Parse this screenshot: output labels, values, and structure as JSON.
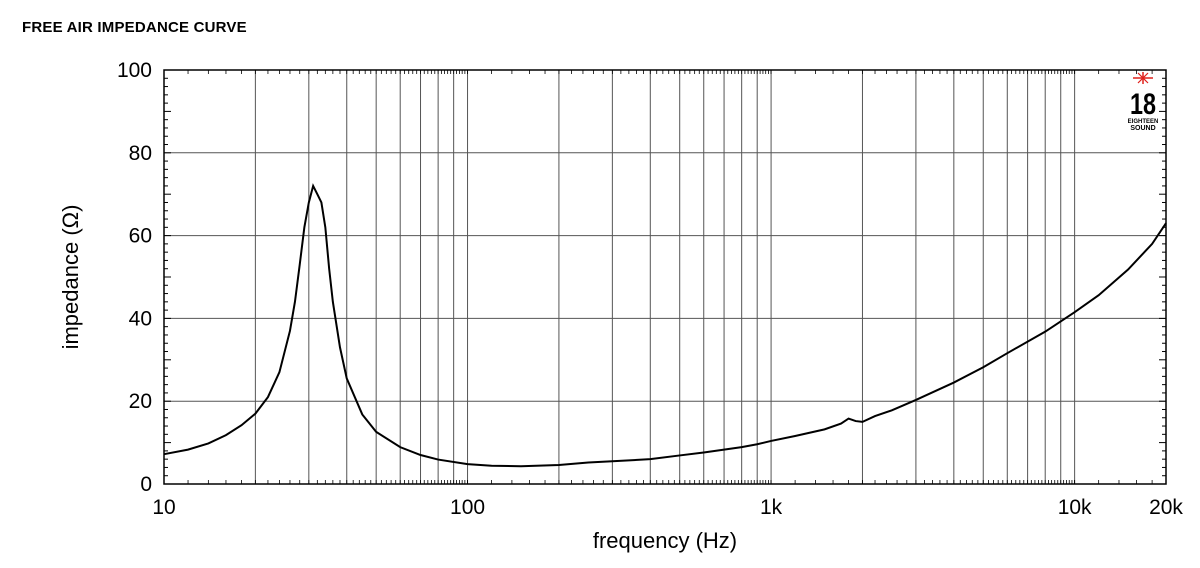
{
  "chart_data": {
    "type": "line",
    "title": "FREE AIR IMPEDANCE CURVE",
    "xlabel": "frequency (Hz)",
    "ylabel": "impedance (Ω)",
    "xscale": "log",
    "xlim": [
      10,
      20000
    ],
    "ylim": [
      0,
      100
    ],
    "grid": true,
    "x_ticks": [
      10,
      100,
      1000,
      10000,
      20000
    ],
    "x_tick_labels": [
      "10",
      "100",
      "1k",
      "10k",
      "20k"
    ],
    "y_ticks": [
      0,
      20,
      40,
      60,
      80,
      100
    ],
    "y_tick_labels": [
      "0",
      "20",
      "40",
      "60",
      "80",
      "100"
    ],
    "series": [
      {
        "x": [
          10,
          12,
          14,
          16,
          18,
          20,
          22,
          24,
          26,
          27,
          28,
          29,
          30,
          31,
          32,
          33,
          34,
          35,
          36,
          38,
          40,
          45,
          50,
          60,
          70,
          80,
          100,
          120,
          150,
          200,
          250,
          300,
          400,
          500,
          600,
          700,
          800,
          900,
          1000,
          1200,
          1500,
          1700,
          1800,
          1900,
          2000,
          2200,
          2500,
          3000,
          4000,
          5000,
          6000,
          8000,
          10000,
          12000,
          15000,
          18000,
          20000
        ],
        "y": [
          7.2,
          8.3,
          9.8,
          11.8,
          14.2,
          17.0,
          21.0,
          27.0,
          37.0,
          44.0,
          53.0,
          62.0,
          68.0,
          72.0,
          70.0,
          68.0,
          62.0,
          52.0,
          44.0,
          33.0,
          25.5,
          16.8,
          12.6,
          8.9,
          7.0,
          5.9,
          4.8,
          4.4,
          4.3,
          4.6,
          5.2,
          5.5,
          6.0,
          6.9,
          7.6,
          8.3,
          8.9,
          9.6,
          10.4,
          11.6,
          13.2,
          14.6,
          15.8,
          15.2,
          15.0,
          16.4,
          17.8,
          20.3,
          24.5,
          28.2,
          31.6,
          36.8,
          41.5,
          45.6,
          51.8,
          58.0,
          63.0
        ]
      }
    ]
  },
  "logo": {
    "text": "18",
    "subtext_top": "EIGHTEEN",
    "subtext_bottom": "SOUND"
  }
}
